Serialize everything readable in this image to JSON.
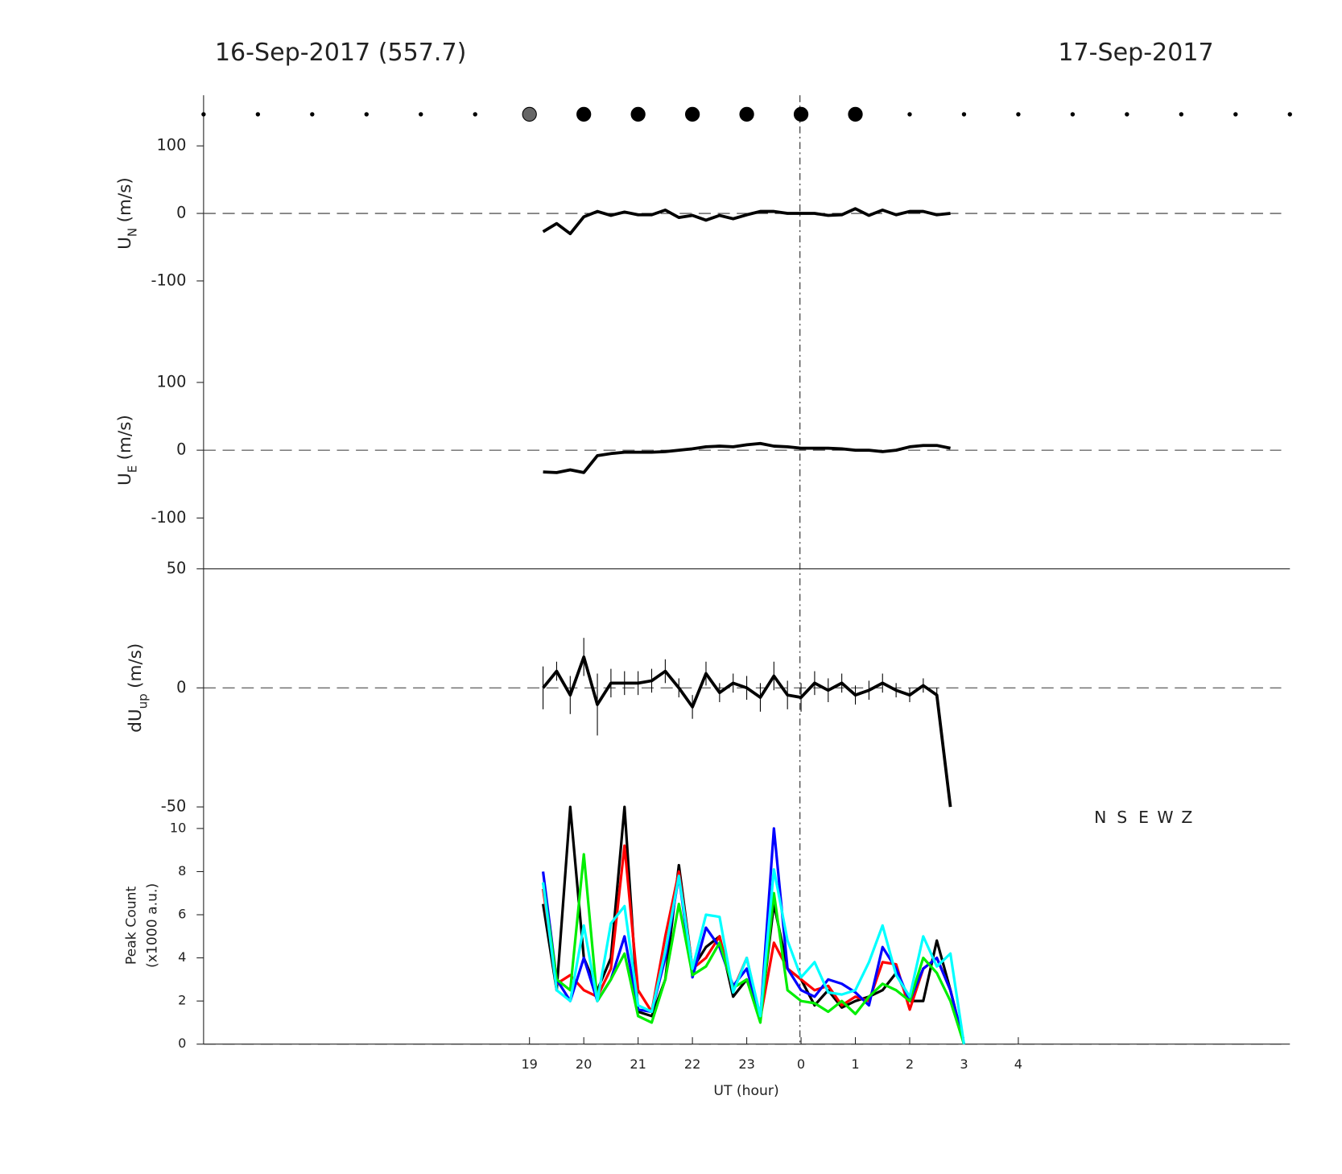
{
  "header": {
    "left": "16-Sep-2017 (557.7)",
    "right": "17-Sep-2017"
  },
  "dots": {
    "x": [
      13,
      14,
      15,
      16,
      17,
      18,
      19,
      20,
      21,
      22,
      23,
      24,
      25,
      26,
      27,
      28,
      29,
      30,
      31,
      32,
      33
    ],
    "radius": [
      2,
      2,
      2,
      2,
      2,
      2,
      8,
      8,
      8,
      8,
      8,
      8,
      8,
      2,
      2,
      2,
      2,
      2,
      2,
      2,
      2
    ],
    "colors": [
      "#000",
      "#000",
      "#000",
      "#000",
      "#000",
      "#000",
      "#666",
      "#000",
      "#000",
      "#000",
      "#000",
      "#000",
      "#000",
      "#000",
      "#000",
      "#000",
      "#000",
      "#000",
      "#000",
      "#000",
      "#000"
    ]
  },
  "chart_data": [
    {
      "type": "line",
      "ylabel": {
        "main": "U",
        "sub": "N",
        "unit": "(m/s)"
      },
      "xlim": [
        13,
        33
      ],
      "ylim": [
        -175,
        175
      ],
      "yticks": [
        -100,
        0,
        100
      ],
      "x": [
        19.25,
        19.5,
        19.75,
        20,
        20.25,
        20.5,
        20.75,
        21,
        21.25,
        21.5,
        21.75,
        22,
        22.25,
        22.5,
        22.75,
        23,
        23.25,
        23.5,
        23.75,
        24,
        24.25,
        24.5,
        24.75,
        25,
        25.25,
        25.5,
        25.75,
        26,
        26.25,
        26.5,
        26.75
      ],
      "series": [
        {
          "color": "#000",
          "values": [
            -27,
            -15,
            -30,
            -5,
            3,
            -3,
            2,
            -2,
            -2,
            5,
            -6,
            -3,
            -10,
            -3,
            -8,
            -2,
            3,
            3,
            0,
            0,
            0,
            -3,
            -2,
            7,
            -3,
            5,
            -2,
            3,
            3,
            -2,
            0
          ]
        }
      ]
    },
    {
      "type": "line",
      "ylabel": {
        "main": "U",
        "sub": "E",
        "unit": "(m/s)"
      },
      "xlim": [
        13,
        33
      ],
      "ylim": [
        -175,
        175
      ],
      "yticks": [
        -100,
        0,
        100
      ],
      "x": [
        19.25,
        19.5,
        19.75,
        20,
        20.25,
        20.5,
        20.75,
        21,
        21.25,
        21.5,
        21.75,
        22,
        22.25,
        22.5,
        22.75,
        23,
        23.25,
        23.5,
        23.75,
        24,
        24.25,
        24.5,
        24.75,
        25,
        25.25,
        25.5,
        25.75,
        26,
        26.25,
        26.5,
        26.75
      ],
      "series": [
        {
          "color": "#000",
          "values": [
            -32,
            -33,
            -29,
            -33,
            -8,
            -5,
            -3,
            -3,
            -3,
            -2,
            0,
            2,
            5,
            6,
            5,
            8,
            10,
            6,
            5,
            3,
            3,
            3,
            2,
            0,
            0,
            -2,
            0,
            5,
            7,
            7,
            3
          ]
        }
      ]
    },
    {
      "type": "errorline",
      "ylabel": {
        "main": "dU",
        "sub": "up",
        "unit": "(m/s)"
      },
      "xlim": [
        13,
        33
      ],
      "ylim": [
        -50,
        50
      ],
      "yticks": [
        -50,
        0,
        50
      ],
      "x": [
        19.25,
        19.5,
        19.75,
        20,
        20.25,
        20.5,
        20.75,
        21,
        21.25,
        21.5,
        21.75,
        22,
        22.25,
        22.5,
        22.75,
        23,
        23.25,
        23.5,
        23.75,
        24,
        24.25,
        24.5,
        24.75,
        25,
        25.25,
        25.5,
        25.75,
        26,
        26.25,
        26.5,
        26.75
      ],
      "series": [
        {
          "color": "#000",
          "values": [
            0,
            7,
            -3,
            13,
            -7,
            2,
            2,
            2,
            3,
            7,
            0,
            -8,
            6,
            -2,
            2,
            0,
            -4,
            5,
            -3,
            -4,
            2,
            -1,
            2,
            -3,
            -1,
            2,
            -1,
            -3,
            1,
            -3,
            -50
          ],
          "errors": [
            9,
            4,
            8,
            8,
            13,
            6,
            5,
            5,
            5,
            5,
            4,
            5,
            5,
            4,
            4,
            5,
            6,
            6,
            6,
            6,
            5,
            5,
            4,
            4,
            4,
            4,
            3,
            3,
            3,
            3,
            0
          ]
        }
      ]
    },
    {
      "type": "line",
      "ylabel": {
        "main": "Peak Count",
        "unit": "(x1000 a.u.)"
      },
      "xlabel": "UT (hour)",
      "xlim": [
        13,
        33
      ],
      "ylim": [
        0,
        11
      ],
      "yticks": [
        0,
        2,
        4,
        6,
        8,
        10
      ],
      "xticks": [
        19,
        20,
        21,
        22,
        23,
        {
          "value": 24,
          "label": "0"
        },
        {
          "value": 25,
          "label": "1"
        },
        {
          "value": 26,
          "label": "2"
        },
        {
          "value": 27,
          "label": "3"
        },
        {
          "value": 28,
          "label": "4"
        }
      ],
      "x": [
        19.25,
        19.5,
        19.75,
        20,
        20.25,
        20.5,
        20.75,
        21,
        21.25,
        21.5,
        21.75,
        22,
        22.25,
        22.5,
        22.75,
        23,
        23.25,
        23.5,
        23.75,
        24,
        24.25,
        24.5,
        24.75,
        25,
        25.25,
        25.5,
        25.75,
        26,
        26.25,
        26.5,
        26.75,
        27
      ],
      "series": [
        {
          "name": "N",
          "color": "#000000",
          "values": [
            6.5,
            2.5,
            11,
            4,
            2.5,
            4,
            11,
            1.5,
            1.3,
            3,
            8.3,
            3.5,
            4.5,
            5,
            2.2,
            3,
            1.2,
            6.5,
            3.5,
            3,
            1.8,
            2.5,
            1.7,
            2,
            2.2,
            2.5,
            3.3,
            2,
            2,
            4.8,
            2.5,
            0
          ]
        },
        {
          "name": "S",
          "color": "#ff0000",
          "values": [
            7.2,
            2.8,
            3.2,
            2.5,
            2.2,
            3.5,
            9.2,
            2.5,
            1.5,
            5,
            8,
            3.5,
            4,
            5,
            2.5,
            4,
            1.2,
            4.7,
            3.5,
            3,
            2.5,
            2.7,
            1.8,
            2.2,
            2,
            3.8,
            3.7,
            1.6,
            3.5,
            4,
            2.5,
            0
          ]
        },
        {
          "name": "E",
          "color": "#0000ff",
          "values": [
            8,
            3,
            2,
            4,
            2,
            3,
            5,
            1.6,
            1.5,
            4,
            7.8,
            3.1,
            5.4,
            4.5,
            2.7,
            3.5,
            1.2,
            10,
            3.5,
            2.5,
            2.2,
            3,
            2.8,
            2.4,
            1.8,
            4.5,
            3.5,
            2,
            3.5,
            4,
            2.5,
            0
          ]
        },
        {
          "name": "W",
          "color": "#00ee00",
          "values": [
            7.5,
            3,
            2.5,
            8.8,
            2,
            3,
            4.2,
            1.3,
            1,
            3,
            6.5,
            3.2,
            3.6,
            4.7,
            2.6,
            3,
            1,
            7,
            2.5,
            2,
            1.9,
            1.5,
            2,
            1.4,
            2.2,
            2.8,
            2.5,
            2,
            4,
            3.3,
            2,
            0
          ]
        },
        {
          "name": "Z",
          "color": "#00ffff",
          "values": [
            7.5,
            2.5,
            2,
            5.5,
            2,
            5.6,
            6.4,
            1.8,
            1.5,
            4.3,
            7.8,
            3.5,
            6,
            5.9,
            2.4,
            4,
            1.3,
            8.1,
            4.8,
            3.1,
            3.8,
            2.4,
            2.3,
            2.5,
            3.8,
            5.5,
            3.2,
            2.2,
            5,
            3.6,
            4.2,
            0
          ]
        }
      ]
    }
  ]
}
